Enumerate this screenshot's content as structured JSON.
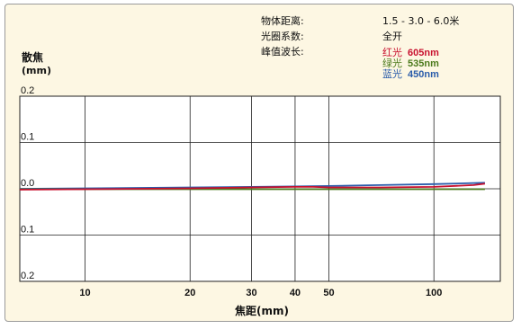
{
  "info": {
    "object_distance_label": "物体距离:",
    "object_distance_value": "1.5 - 3.0 - 6.0米",
    "aperture_label": "光圈系数:",
    "aperture_value": "全开",
    "wavelength_label": "峰值波长:",
    "wavelengths": [
      {
        "name": "红光",
        "value": "605nm",
        "color": "#c8102e"
      },
      {
        "name": "绿光",
        "value": "535nm",
        "color": "#4c7a1c"
      },
      {
        "name": "蓝光",
        "value": "450nm",
        "color": "#2a5caa"
      }
    ]
  },
  "chart_data": {
    "type": "line",
    "xlabel": "焦距(mm)",
    "ylabel": "散焦\n(mm)",
    "x_scale": "log",
    "xlim": [
      6.5,
      155
    ],
    "ylim": [
      -0.2,
      0.2
    ],
    "x_ticks": [
      10,
      20,
      30,
      40,
      50,
      100
    ],
    "y_ticks": [
      {
        "value": 0.2,
        "label": "0.2"
      },
      {
        "value": 0.1,
        "label": "0.1"
      },
      {
        "value": 0.0,
        "label": "0.0"
      },
      {
        "value": -0.1,
        "label": "0.1"
      },
      {
        "value": -0.2,
        "label": "0.2"
      }
    ],
    "grid": true,
    "series": [
      {
        "name": "蓝光 450nm",
        "color": "#2a5caa",
        "x": [
          6.5,
          10,
          20,
          30,
          40,
          50,
          70,
          100,
          140
        ],
        "y": [
          0.0,
          0.001,
          0.003,
          0.004,
          0.005,
          0.006,
          0.008,
          0.01,
          0.013
        ]
      },
      {
        "name": "绿光 535nm",
        "color": "#4c7a1c",
        "x": [
          6.5,
          10,
          20,
          30,
          40,
          50,
          70,
          100,
          140
        ],
        "y": [
          -0.001,
          -0.001,
          -0.001,
          -0.001,
          -0.001,
          -0.001,
          -0.001,
          -0.001,
          -0.001
        ]
      },
      {
        "name": "红光 605nm",
        "color": "#c8102e",
        "x": [
          6.5,
          10,
          20,
          30,
          40,
          45,
          50,
          70,
          100,
          130,
          140
        ],
        "y": [
          -0.002,
          -0.001,
          0.001,
          0.003,
          0.004,
          0.004,
          0.003,
          0.003,
          0.004,
          0.008,
          0.011
        ]
      }
    ]
  }
}
